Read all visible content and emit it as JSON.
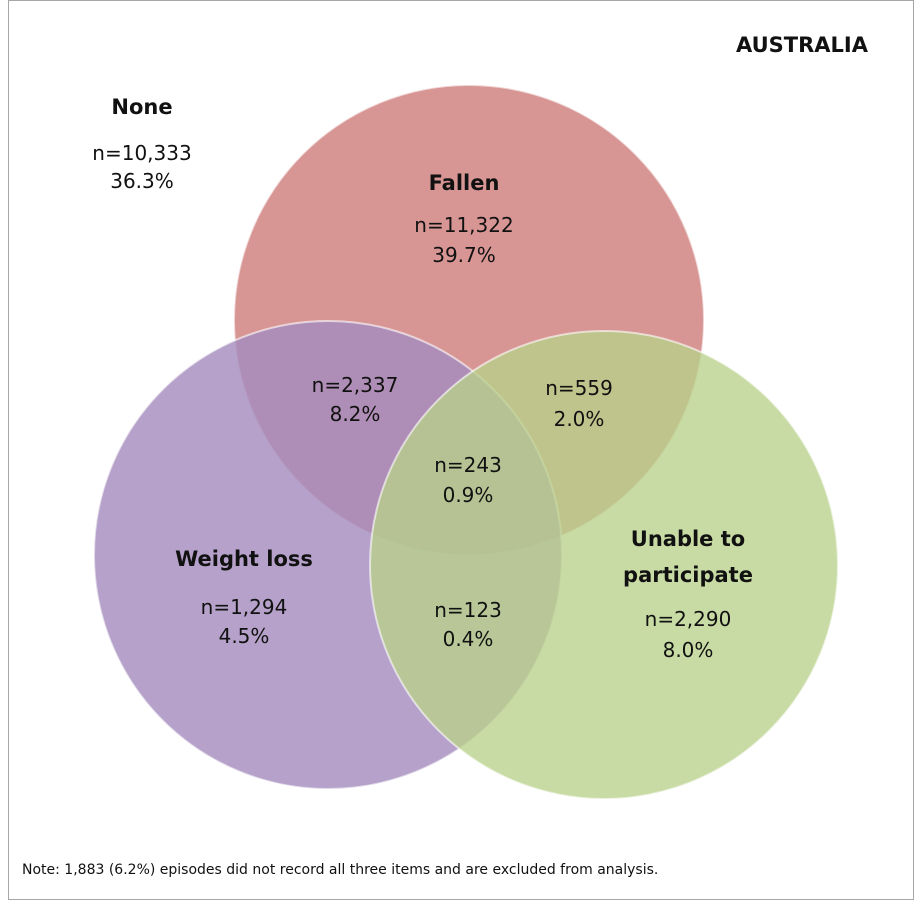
{
  "region": "AUSTRALIA",
  "sets": {
    "none": {
      "label": "None",
      "n": "n=10,333",
      "pct": "36.3%"
    },
    "fallen": {
      "label": "Fallen",
      "n": "n=11,322",
      "pct": "39.7%",
      "color": "#d38988"
    },
    "weight_loss": {
      "label": "Weight loss",
      "n": "n=1,294",
      "pct": "4.5%",
      "color": "#a58cbd"
    },
    "unable": {
      "label_line1": "Unable to",
      "label_line2": "participate",
      "n": "n=2,290",
      "pct": "8.0%",
      "color": "#b8d18a"
    }
  },
  "intersections": {
    "fallen_weight": {
      "n": "n=2,337",
      "pct": "8.2%"
    },
    "fallen_unable": {
      "n": "n=559",
      "pct": "2.0%"
    },
    "all_three": {
      "n": "n=243",
      "pct": "0.9%"
    },
    "weight_unable": {
      "n": "n=123",
      "pct": "0.4%"
    }
  },
  "note": "Note: 1,883 (6.2%) episodes did not record all three items and are excluded from analysis."
}
